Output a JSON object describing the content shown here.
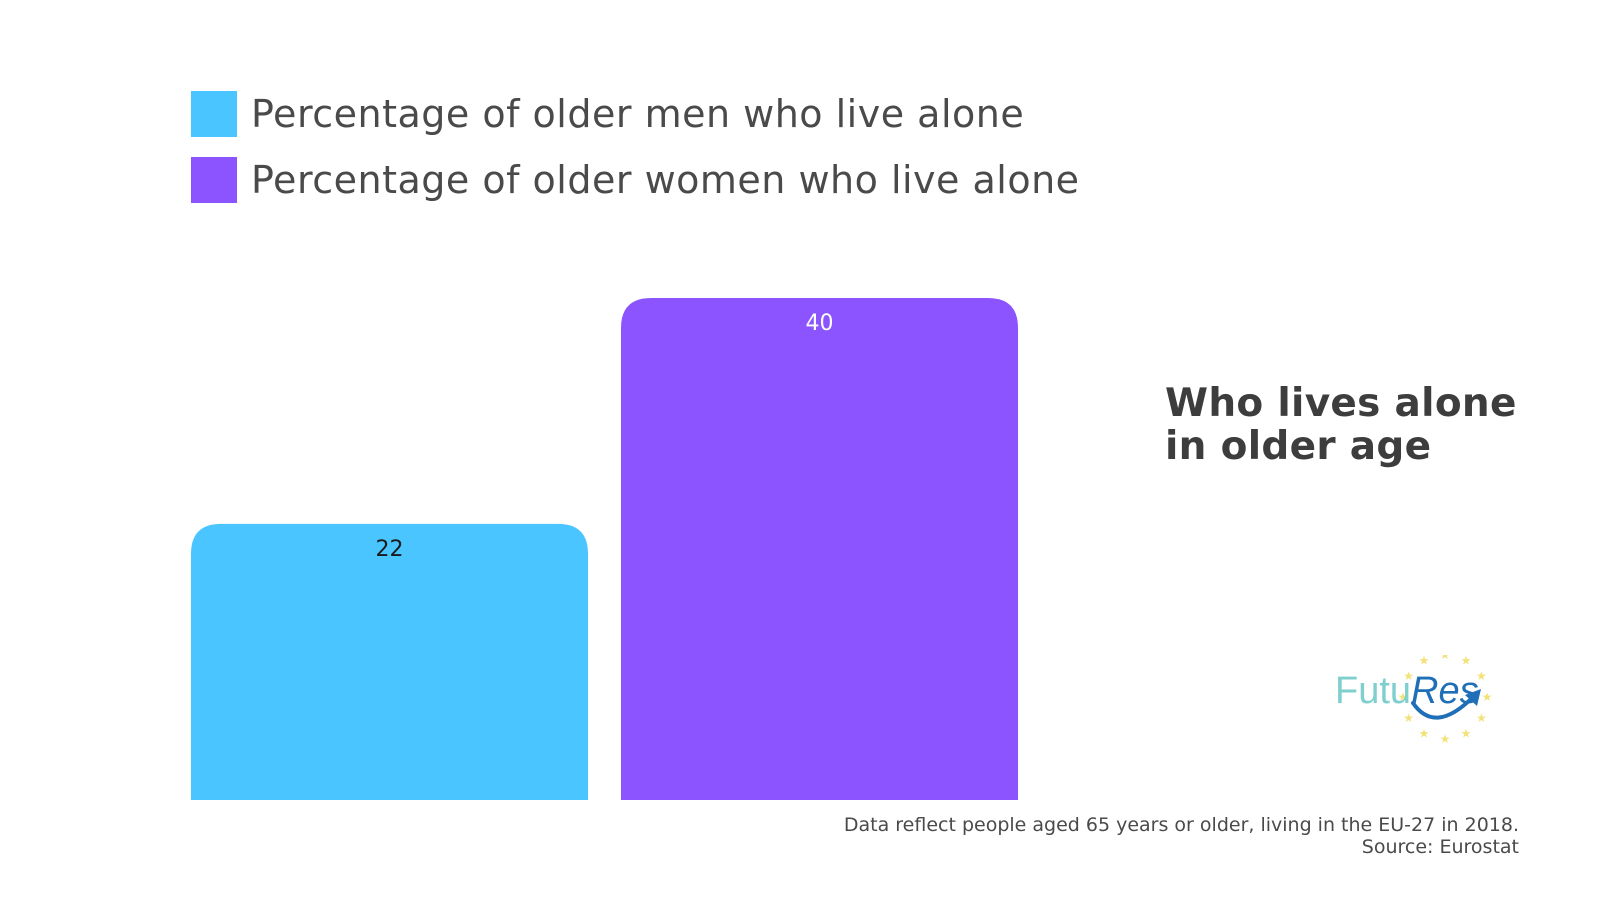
{
  "chart_data": {
    "type": "bar",
    "categories": [
      "Percentage of older men who live alone",
      "Percentage of older women who live alone"
    ],
    "values": [
      22,
      40
    ],
    "data_labels": [
      "22",
      "40"
    ],
    "colors": [
      "#4bc5ff",
      "#8b54ff"
    ],
    "label_colors": [
      "#1a1a1a",
      "#ffffff"
    ],
    "legend": [
      {
        "label": "Percentage of older men who live alone",
        "color": "#4bc5ff"
      },
      {
        "label": "Percentage of older women who live alone",
        "color": "#8b54ff"
      }
    ],
    "legend_position": "top-left",
    "grid": false,
    "ylim": [
      0,
      40
    ],
    "title": "Who lives alone in older age",
    "xlabel": "",
    "ylabel": ""
  },
  "side_title_lines": [
    "Who lives alone",
    "in older age"
  ],
  "footnote": {
    "line1": "Data reflect people aged 65 years or older, living in the EU-27 in 2018.",
    "line2": "Source: Eurostat"
  },
  "logo": {
    "text_part1": "Futu",
    "text_part2": "Res",
    "color_part1": "#7fcfcf",
    "color_part2": "#1e6fb8",
    "star_color": "#f3e27a"
  }
}
